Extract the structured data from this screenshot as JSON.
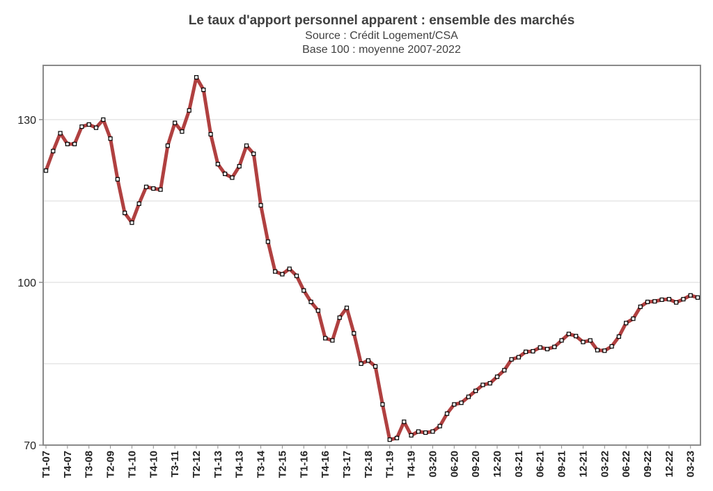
{
  "chart_data": {
    "type": "line",
    "title": "Le taux d'apport personnel apparent : ensemble des marchés",
    "subtitle": "Source : Crédit Logement/CSA",
    "subtitle2": "Base 100 : moyenne 2007-2022",
    "xlabel": "",
    "ylabel": "",
    "ylim": [
      70,
      140
    ],
    "yticks": [
      70,
      100,
      130
    ],
    "grid": true,
    "series_color": "#b04040",
    "marker_color": "#ffffff",
    "xtick_labels": [
      "T1-07",
      "T4-07",
      "T3-08",
      "T2-09",
      "T1-10",
      "T4-10",
      "T3-11",
      "T2-12",
      "T1-13",
      "T4-13",
      "T3-14",
      "T2-15",
      "T1-16",
      "T4-16",
      "T3-17",
      "T2-18",
      "T1-19",
      "T4-19",
      "03-20",
      "06-20",
      "09-20",
      "12-20",
      "03-21",
      "06-21",
      "09-21",
      "12-21",
      "03-22",
      "06-22",
      "09-22",
      "12-22",
      "03-23"
    ],
    "series": [
      {
        "values": [
          120.6,
          124.2,
          127.5,
          125.5,
          125.5,
          128.7,
          129.1,
          128.5,
          130.0,
          126.5,
          119.0,
          112.8,
          111.0,
          114.5,
          117.6,
          117.3,
          117.1,
          125.2,
          129.4,
          127.8,
          131.7,
          137.8,
          135.5,
          127.3,
          121.8,
          120.0,
          119.3,
          121.4,
          125.2,
          123.7,
          114.2,
          107.5,
          102.0,
          101.5,
          102.5,
          101.2,
          98.5,
          96.4,
          94.8,
          89.7,
          89.3,
          93.5,
          95.3,
          90.6,
          85.0,
          85.6,
          84.5,
          77.5,
          71.0,
          71.3,
          74.3,
          71.8,
          72.5,
          72.3,
          72.5,
          73.5,
          75.8,
          77.5,
          77.8,
          78.9,
          80.0,
          81.1,
          81.4,
          82.6,
          83.8,
          85.8,
          86.2,
          87.2,
          87.3,
          88.0,
          87.7,
          88.1,
          89.3,
          90.5,
          90.1,
          89.0,
          89.3,
          87.5,
          87.4,
          88.2,
          90.0,
          92.5,
          93.3,
          95.5,
          96.4,
          96.5,
          96.8,
          96.9,
          96.3,
          96.9,
          97.6,
          97.2
        ]
      }
    ]
  }
}
